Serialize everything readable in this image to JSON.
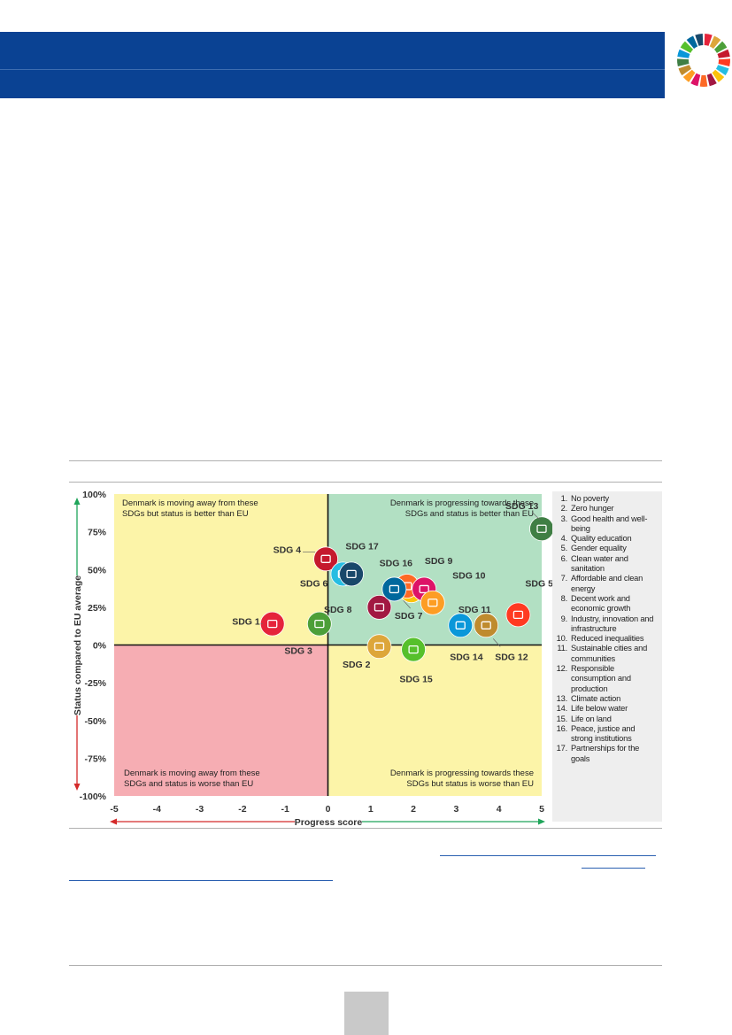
{
  "chart_data": {
    "type": "scatter",
    "xlabel": "Progress score",
    "ylabel": "Status compared to EU average",
    "xlim": [
      -5,
      5
    ],
    "ylim": [
      -100,
      100
    ],
    "x_ticks": [
      "-5",
      "-4",
      "-3",
      "-2",
      "-1",
      "0",
      "1",
      "2",
      "3",
      "4",
      "5"
    ],
    "y_ticks": [
      "100%",
      "75%",
      "50%",
      "25%",
      "0%",
      "-25%",
      "-50%",
      "-75%",
      "-100%"
    ],
    "quadrant_labels": {
      "top_left": [
        "Denmark is moving away from these",
        "SDGs but status is better than EU"
      ],
      "top_right": [
        "Denmark is progressing towards these",
        "SDGs and status is better than EU"
      ],
      "bottom_left": [
        "Denmark is moving away from these",
        "SDGs and status is worse than EU"
      ],
      "bottom_right": [
        "Denmark is progressing towards these",
        "SDGs but status is worse than EU"
      ]
    },
    "quadrant_colors": {
      "top_left": "#fcf4a8",
      "top_right": "#b2e0c3",
      "bottom_left": "#f6adb3",
      "bottom_right": "#fcf4a8"
    },
    "points": [
      {
        "label": "SDG 1",
        "x": -1.3,
        "y": 14,
        "color": "#e5243b",
        "icon": "people-icon"
      },
      {
        "label": "SDG 2",
        "x": 1.2,
        "y": -1,
        "color": "#dda63a",
        "icon": "bowl-icon"
      },
      {
        "label": "SDG 3",
        "x": -0.2,
        "y": 14,
        "color": "#4c9f38",
        "icon": "heartbeat-icon"
      },
      {
        "label": "SDG 4",
        "x": -0.05,
        "y": 57,
        "color": "#c5192d",
        "icon": "book-icon"
      },
      {
        "label": "SDG 5",
        "x": 4.45,
        "y": 20,
        "color": "#ff3a21",
        "icon": "gender-icon"
      },
      {
        "label": "SDG 6",
        "x": 0.35,
        "y": 47,
        "color": "#26bde2",
        "icon": "water-drop-icon"
      },
      {
        "label": "SDG 7",
        "x": 1.95,
        "y": 36,
        "color": "#fcc30b",
        "icon": "sun-icon"
      },
      {
        "label": "SDG 8",
        "x": 1.2,
        "y": 25,
        "color": "#a21942",
        "icon": "growth-chart-icon"
      },
      {
        "label": "SDG 9",
        "x": 1.85,
        "y": 39,
        "color": "#fd6925",
        "icon": "cubes-icon"
      },
      {
        "label": "SDG 10",
        "x": 2.25,
        "y": 37,
        "color": "#dd1367",
        "icon": "equality-icon"
      },
      {
        "label": "SDG 11",
        "x": 2.45,
        "y": 28,
        "color": "#fd9d24",
        "icon": "buildings-icon"
      },
      {
        "label": "SDG 12",
        "x": 3.7,
        "y": 13,
        "color": "#bf8b2e",
        "icon": "infinity-icon"
      },
      {
        "label": "SDG 13",
        "x": 5.0,
        "y": 77,
        "color": "#3f7e44",
        "icon": "eye-icon"
      },
      {
        "label": "SDG 14",
        "x": 3.1,
        "y": 13,
        "color": "#0a97d9",
        "icon": "fish-icon"
      },
      {
        "label": "SDG 15",
        "x": 2.0,
        "y": -3,
        "color": "#56c02b",
        "icon": "tree-icon"
      },
      {
        "label": "SDG 16",
        "x": 1.55,
        "y": 37,
        "color": "#00689d",
        "icon": "dove-icon"
      },
      {
        "label": "SDG 17",
        "x": 0.55,
        "y": 47,
        "color": "#19486a",
        "icon": "network-icon"
      }
    ]
  },
  "legend": {
    "items": [
      {
        "num": "1.",
        "lines": [
          "No poverty"
        ]
      },
      {
        "num": "2.",
        "lines": [
          "Zero hunger"
        ]
      },
      {
        "num": "3.",
        "lines": [
          "Good health and well-",
          "being"
        ]
      },
      {
        "num": "4.",
        "lines": [
          "Quality education"
        ]
      },
      {
        "num": "5.",
        "lines": [
          "Gender equality"
        ]
      },
      {
        "num": "6.",
        "lines": [
          "Clean water and",
          "sanitation"
        ]
      },
      {
        "num": "7.",
        "lines": [
          "Affordable and clean",
          "energy"
        ]
      },
      {
        "num": "8.",
        "lines": [
          "Decent work and",
          "economic growth"
        ]
      },
      {
        "num": "9.",
        "lines": [
          "Industry, innovation and",
          "infrastructure"
        ]
      },
      {
        "num": "10.",
        "lines": [
          "Reduced inequalities"
        ]
      },
      {
        "num": "11.",
        "lines": [
          "Sustainable cities and",
          "communities"
        ]
      },
      {
        "num": "12.",
        "lines": [
          "Responsible",
          "consumption and",
          "production"
        ]
      },
      {
        "num": "13.",
        "lines": [
          "Climate action"
        ]
      },
      {
        "num": "14.",
        "lines": [
          "Life below water"
        ]
      },
      {
        "num": "15.",
        "lines": [
          "Life on land"
        ]
      },
      {
        "num": "16.",
        "lines": [
          "Peace, justice and",
          "strong institutions"
        ]
      },
      {
        "num": "17.",
        "lines": [
          "Partnerships for the",
          "goals"
        ]
      }
    ]
  },
  "theme": {
    "banner_color": "#0a4293",
    "positive_arrow_color": "#1fa55a",
    "negative_arrow_color": "#d42a2a"
  }
}
